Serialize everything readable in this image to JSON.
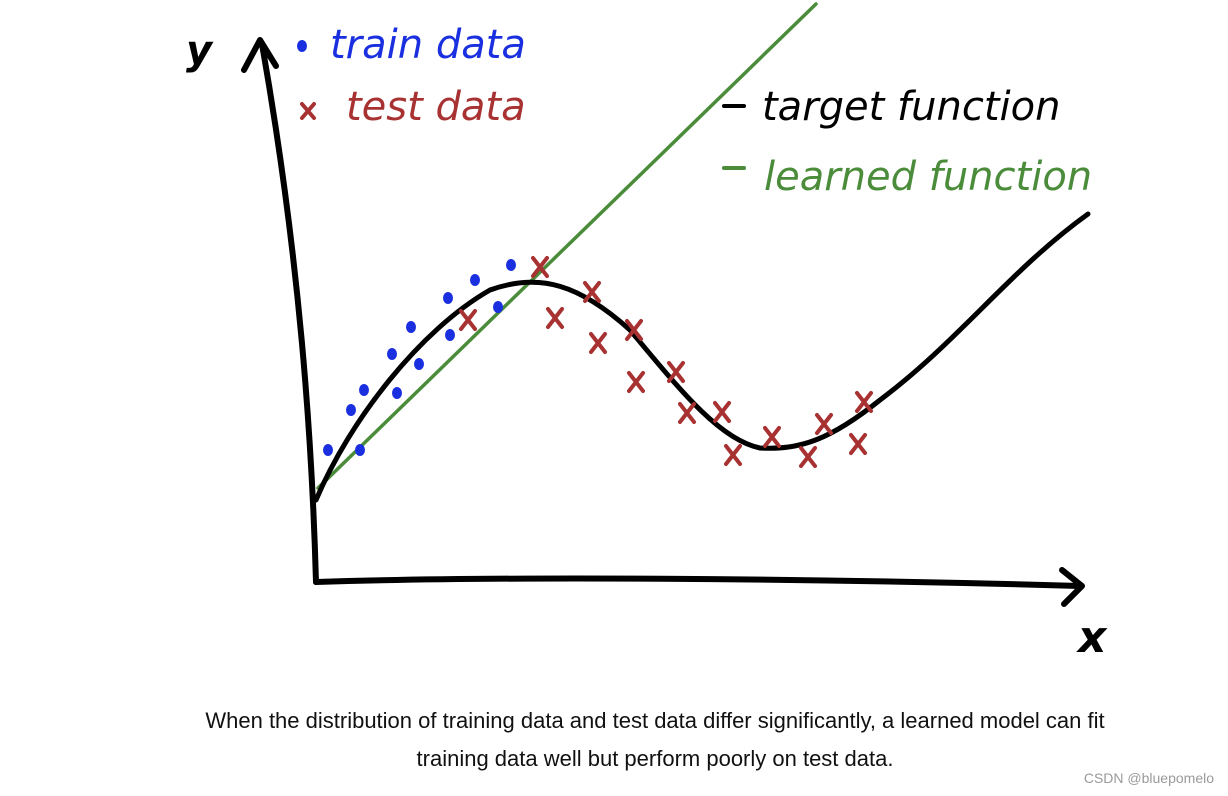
{
  "axes": {
    "y_label": "y",
    "x_label": "x"
  },
  "legend": {
    "train": "train data",
    "test": "test data",
    "target": "target function",
    "learned": "learned function"
  },
  "colors": {
    "train": "#1a2fe0",
    "test": "#a83232",
    "target": "#000000",
    "learned": "#4a8c3a",
    "caption": "#111111"
  },
  "caption": {
    "line1": "When the distribution of training data and test data differ significantly, a learned model can fit",
    "line2": "training data well but perform poorly on test data."
  },
  "watermark": "CSDN @bluepomelo"
}
